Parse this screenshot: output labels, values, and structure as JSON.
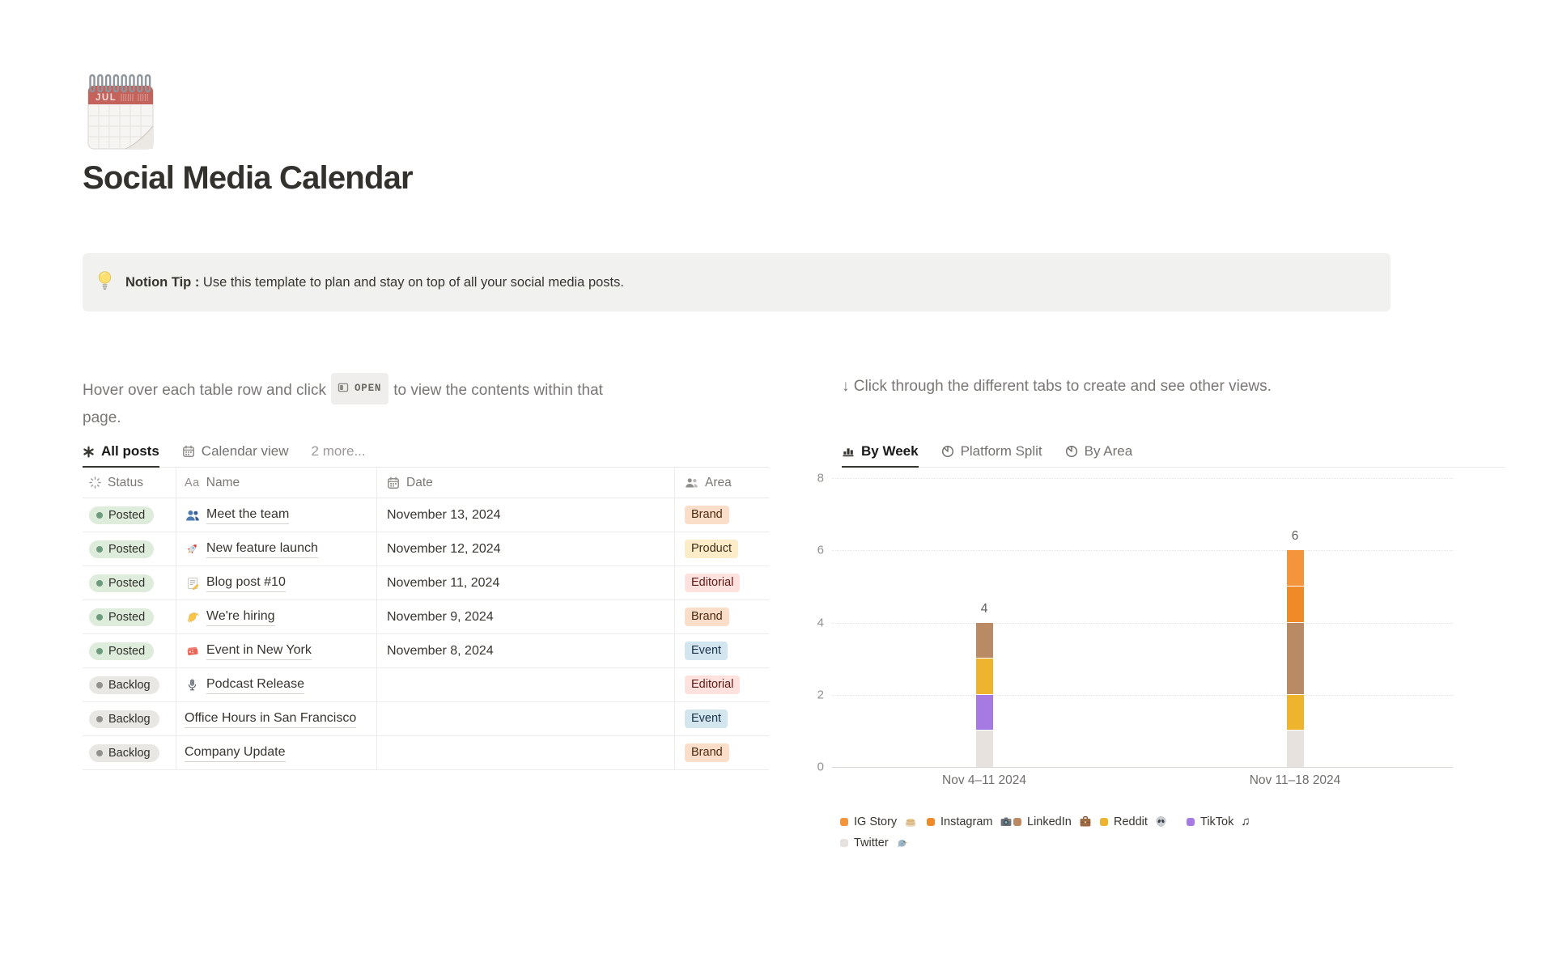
{
  "colors": {
    "text": "#37352F",
    "muted_text": "#787774",
    "border": "#E9E9E7",
    "callout_bg": "#F1F1EF",
    "status": {
      "green": {
        "bg": "#DEECDC",
        "dot": "#6C9B7D"
      },
      "gray": {
        "bg": "#E8E7E4",
        "dot": "#91918E"
      }
    },
    "tags": {
      "orange": {
        "bg": "#FADEC9",
        "text": "#49290E"
      },
      "yellow": {
        "bg": "#FDECC8",
        "text": "#402C1B"
      },
      "red": {
        "bg": "#FFE2DD",
        "text": "#5D1715"
      },
      "blue": {
        "bg": "#D3E5EF",
        "text": "#183347"
      }
    }
  },
  "page": {
    "icon": "spiral-calendar",
    "icon_month": "JUL",
    "title": "Social Media Calendar",
    "callout": {
      "icon": "light-bulb-icon",
      "bold_text": "Notion Tip :",
      "text": " Use this template to plan and stay on top of all your social media posts."
    }
  },
  "left_panel": {
    "instruction_pre": "Hover over each table row and click",
    "open_button_label": "OPEN",
    "instruction_post": "to view the contents within that page.",
    "tabs": [
      {
        "label": "All posts",
        "icon": "asterisk-icon",
        "active": true
      },
      {
        "label": "Calendar view",
        "icon": "calendar-icon",
        "active": false
      },
      {
        "label": "2 more...",
        "icon": null,
        "active": false
      }
    ],
    "table": {
      "columns": [
        {
          "label": "Status",
          "icon": "status-icon"
        },
        {
          "label": "Name",
          "icon": "aa-icon"
        },
        {
          "label": "Date",
          "icon": "calendar-icon"
        },
        {
          "label": "Area",
          "icon": "people-icon"
        }
      ],
      "rows": [
        {
          "status": "Posted",
          "status_color": "green",
          "icon": "busts-icon",
          "name": "Meet the team",
          "date": "November 13, 2024",
          "area": "Brand",
          "area_color": "orange"
        },
        {
          "status": "Posted",
          "status_color": "green",
          "icon": "rocket-icon",
          "name": "New feature launch",
          "date": "November 12, 2024",
          "area": "Product",
          "area_color": "yellow"
        },
        {
          "status": "Posted",
          "status_color": "green",
          "icon": "memo-icon",
          "name": "Blog post #10",
          "date": "November 11, 2024",
          "area": "Editorial",
          "area_color": "red"
        },
        {
          "status": "Posted",
          "status_color": "green",
          "icon": "wave-icon",
          "name": "We're hiring",
          "date": "November 9, 2024",
          "area": "Brand",
          "area_color": "orange"
        },
        {
          "status": "Posted",
          "status_color": "green",
          "icon": "tickets-icon",
          "name": "Event in New York",
          "date": "November 8, 2024",
          "area": "Event",
          "area_color": "blue"
        },
        {
          "status": "Backlog",
          "status_color": "gray",
          "icon": "microphone-icon",
          "name": "Podcast Release",
          "date": "",
          "area": "Editorial",
          "area_color": "red"
        },
        {
          "status": "Backlog",
          "status_color": "gray",
          "icon": null,
          "name": "Office Hours in San Francisco",
          "date": "",
          "area": "Event",
          "area_color": "blue"
        },
        {
          "status": "Backlog",
          "status_color": "gray",
          "icon": null,
          "name": "Company Update",
          "date": "",
          "area": "Brand",
          "area_color": "orange"
        }
      ]
    }
  },
  "right_panel": {
    "instruction": "↓ Click through the different tabs to create and see other views.",
    "tabs": [
      {
        "label": "By Week",
        "icon": "bar-chart-icon",
        "active": true
      },
      {
        "label": "Platform Split",
        "icon": "pie-chart-icon",
        "active": false
      },
      {
        "label": "By Area",
        "icon": "pie-chart-icon",
        "active": false
      }
    ]
  },
  "chart_data": {
    "type": "bar",
    "stacked": true,
    "categories": [
      "Nov 4–11 2024",
      "Nov 11–18 2024"
    ],
    "series": [
      {
        "name": "IG Story",
        "icon": "pancakes-icon",
        "color": "#F4953C",
        "values": [
          0,
          1
        ]
      },
      {
        "name": "Instagram",
        "icon": "camera-icon",
        "color": "#EE8A28",
        "values": [
          0,
          1
        ]
      },
      {
        "name": "LinkedIn",
        "icon": "briefcase-icon",
        "color": "#B98A63",
        "values": [
          1,
          2
        ]
      },
      {
        "name": "Reddit",
        "icon": "alien-icon",
        "color": "#EEB42E",
        "values": [
          1,
          1
        ]
      },
      {
        "name": "TikTok",
        "icon": "music-notes-icon",
        "color": "#A67AE3",
        "values": [
          1,
          0
        ]
      },
      {
        "name": "Twitter",
        "icon": "bird-icon",
        "color": "#E5E2DF",
        "values": [
          1,
          1
        ]
      }
    ],
    "stack_order_bottom_to_top": [
      "Twitter",
      "TikTok",
      "Reddit",
      "LinkedIn",
      "Instagram",
      "IG Story"
    ],
    "bar_totals": [
      4,
      6
    ],
    "ylim": [
      0,
      8
    ],
    "yticks": [
      0,
      2,
      4,
      6,
      8
    ],
    "grid": "dotted-horizontal",
    "legend_position": "bottom"
  }
}
